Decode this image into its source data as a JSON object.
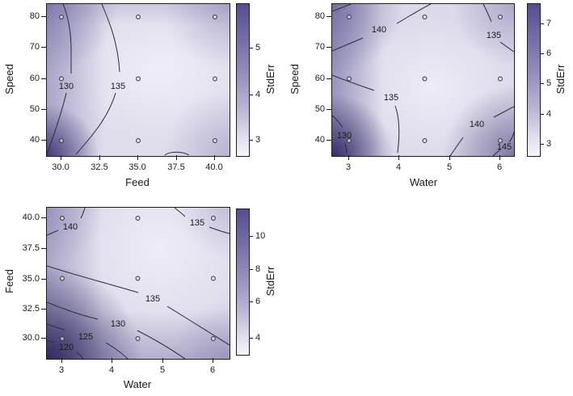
{
  "colors": {
    "gradient_dark": "#544e91",
    "gradient_light": "#f6f4fa",
    "contour_line": "#2b2b3a",
    "background": "#ffffff"
  },
  "chart_data": [
    {
      "type": "contour",
      "panel": "top-left",
      "xlabel": "Feed",
      "ylabel": "Speed",
      "x_ticks": [
        "30.0",
        "32.5",
        "35.0",
        "37.5",
        "40.0"
      ],
      "y_ticks": [
        "80",
        "70",
        "60",
        "50",
        "40"
      ],
      "xlim": [
        29.5,
        40.5
      ],
      "ylim": [
        36,
        84
      ],
      "colorbar": {
        "label": "StdErr",
        "ticks": [
          "5",
          "4",
          "3"
        ],
        "range": [
          2.6,
          5.8
        ]
      },
      "contours": [
        {
          "level": "130"
        },
        {
          "level": "135"
        }
      ],
      "points": [
        [
          30,
          80
        ],
        [
          35,
          80
        ],
        [
          40,
          80
        ],
        [
          30,
          60
        ],
        [
          35,
          60
        ],
        [
          40,
          60
        ],
        [
          30,
          40
        ],
        [
          35,
          40
        ],
        [
          40,
          40
        ]
      ]
    },
    {
      "type": "contour",
      "panel": "top-right",
      "xlabel": "Water",
      "ylabel": "Speed",
      "x_ticks": [
        "3",
        "4",
        "5",
        "6"
      ],
      "y_ticks": [
        "80",
        "70",
        "60",
        "50",
        "40"
      ],
      "xlim": [
        2.65,
        6.35
      ],
      "ylim": [
        36,
        84
      ],
      "colorbar": {
        "label": "StdErr",
        "ticks": [
          "7",
          "6",
          "5",
          "4",
          "3"
        ],
        "range": [
          2.6,
          7.8
        ]
      },
      "contours": [
        {
          "level": "140"
        },
        {
          "level": "135"
        },
        {
          "level": "135"
        },
        {
          "level": "130"
        },
        {
          "level": "140"
        },
        {
          "level": "145"
        }
      ],
      "points": [
        [
          3,
          80
        ],
        [
          4.5,
          80
        ],
        [
          6,
          80
        ],
        [
          3,
          60
        ],
        [
          4.5,
          60
        ],
        [
          6,
          60
        ],
        [
          3,
          40
        ],
        [
          4.5,
          40
        ],
        [
          6,
          40
        ]
      ]
    },
    {
      "type": "contour",
      "panel": "bottom-left",
      "xlabel": "Water",
      "ylabel": "Feed",
      "x_ticks": [
        "3",
        "4",
        "5",
        "6"
      ],
      "y_ticks": [
        "40.0",
        "37.5",
        "35.0",
        "32.5",
        "30.0"
      ],
      "xlim": [
        2.65,
        6.35
      ],
      "ylim": [
        29,
        41
      ],
      "colorbar": {
        "label": "StdErr",
        "ticks": [
          "10",
          "8",
          "6",
          "4"
        ],
        "range": [
          3,
          11.5
        ]
      },
      "contours": [
        {
          "level": "140"
        },
        {
          "level": "135"
        },
        {
          "level": "135"
        },
        {
          "level": "130"
        },
        {
          "level": "125"
        },
        {
          "level": "120"
        }
      ],
      "points": [
        [
          3,
          40
        ],
        [
          4.5,
          40
        ],
        [
          6,
          40
        ],
        [
          3,
          35
        ],
        [
          4.5,
          35
        ],
        [
          6,
          35
        ],
        [
          3,
          30
        ],
        [
          4.5,
          30
        ],
        [
          6,
          30
        ]
      ]
    }
  ]
}
